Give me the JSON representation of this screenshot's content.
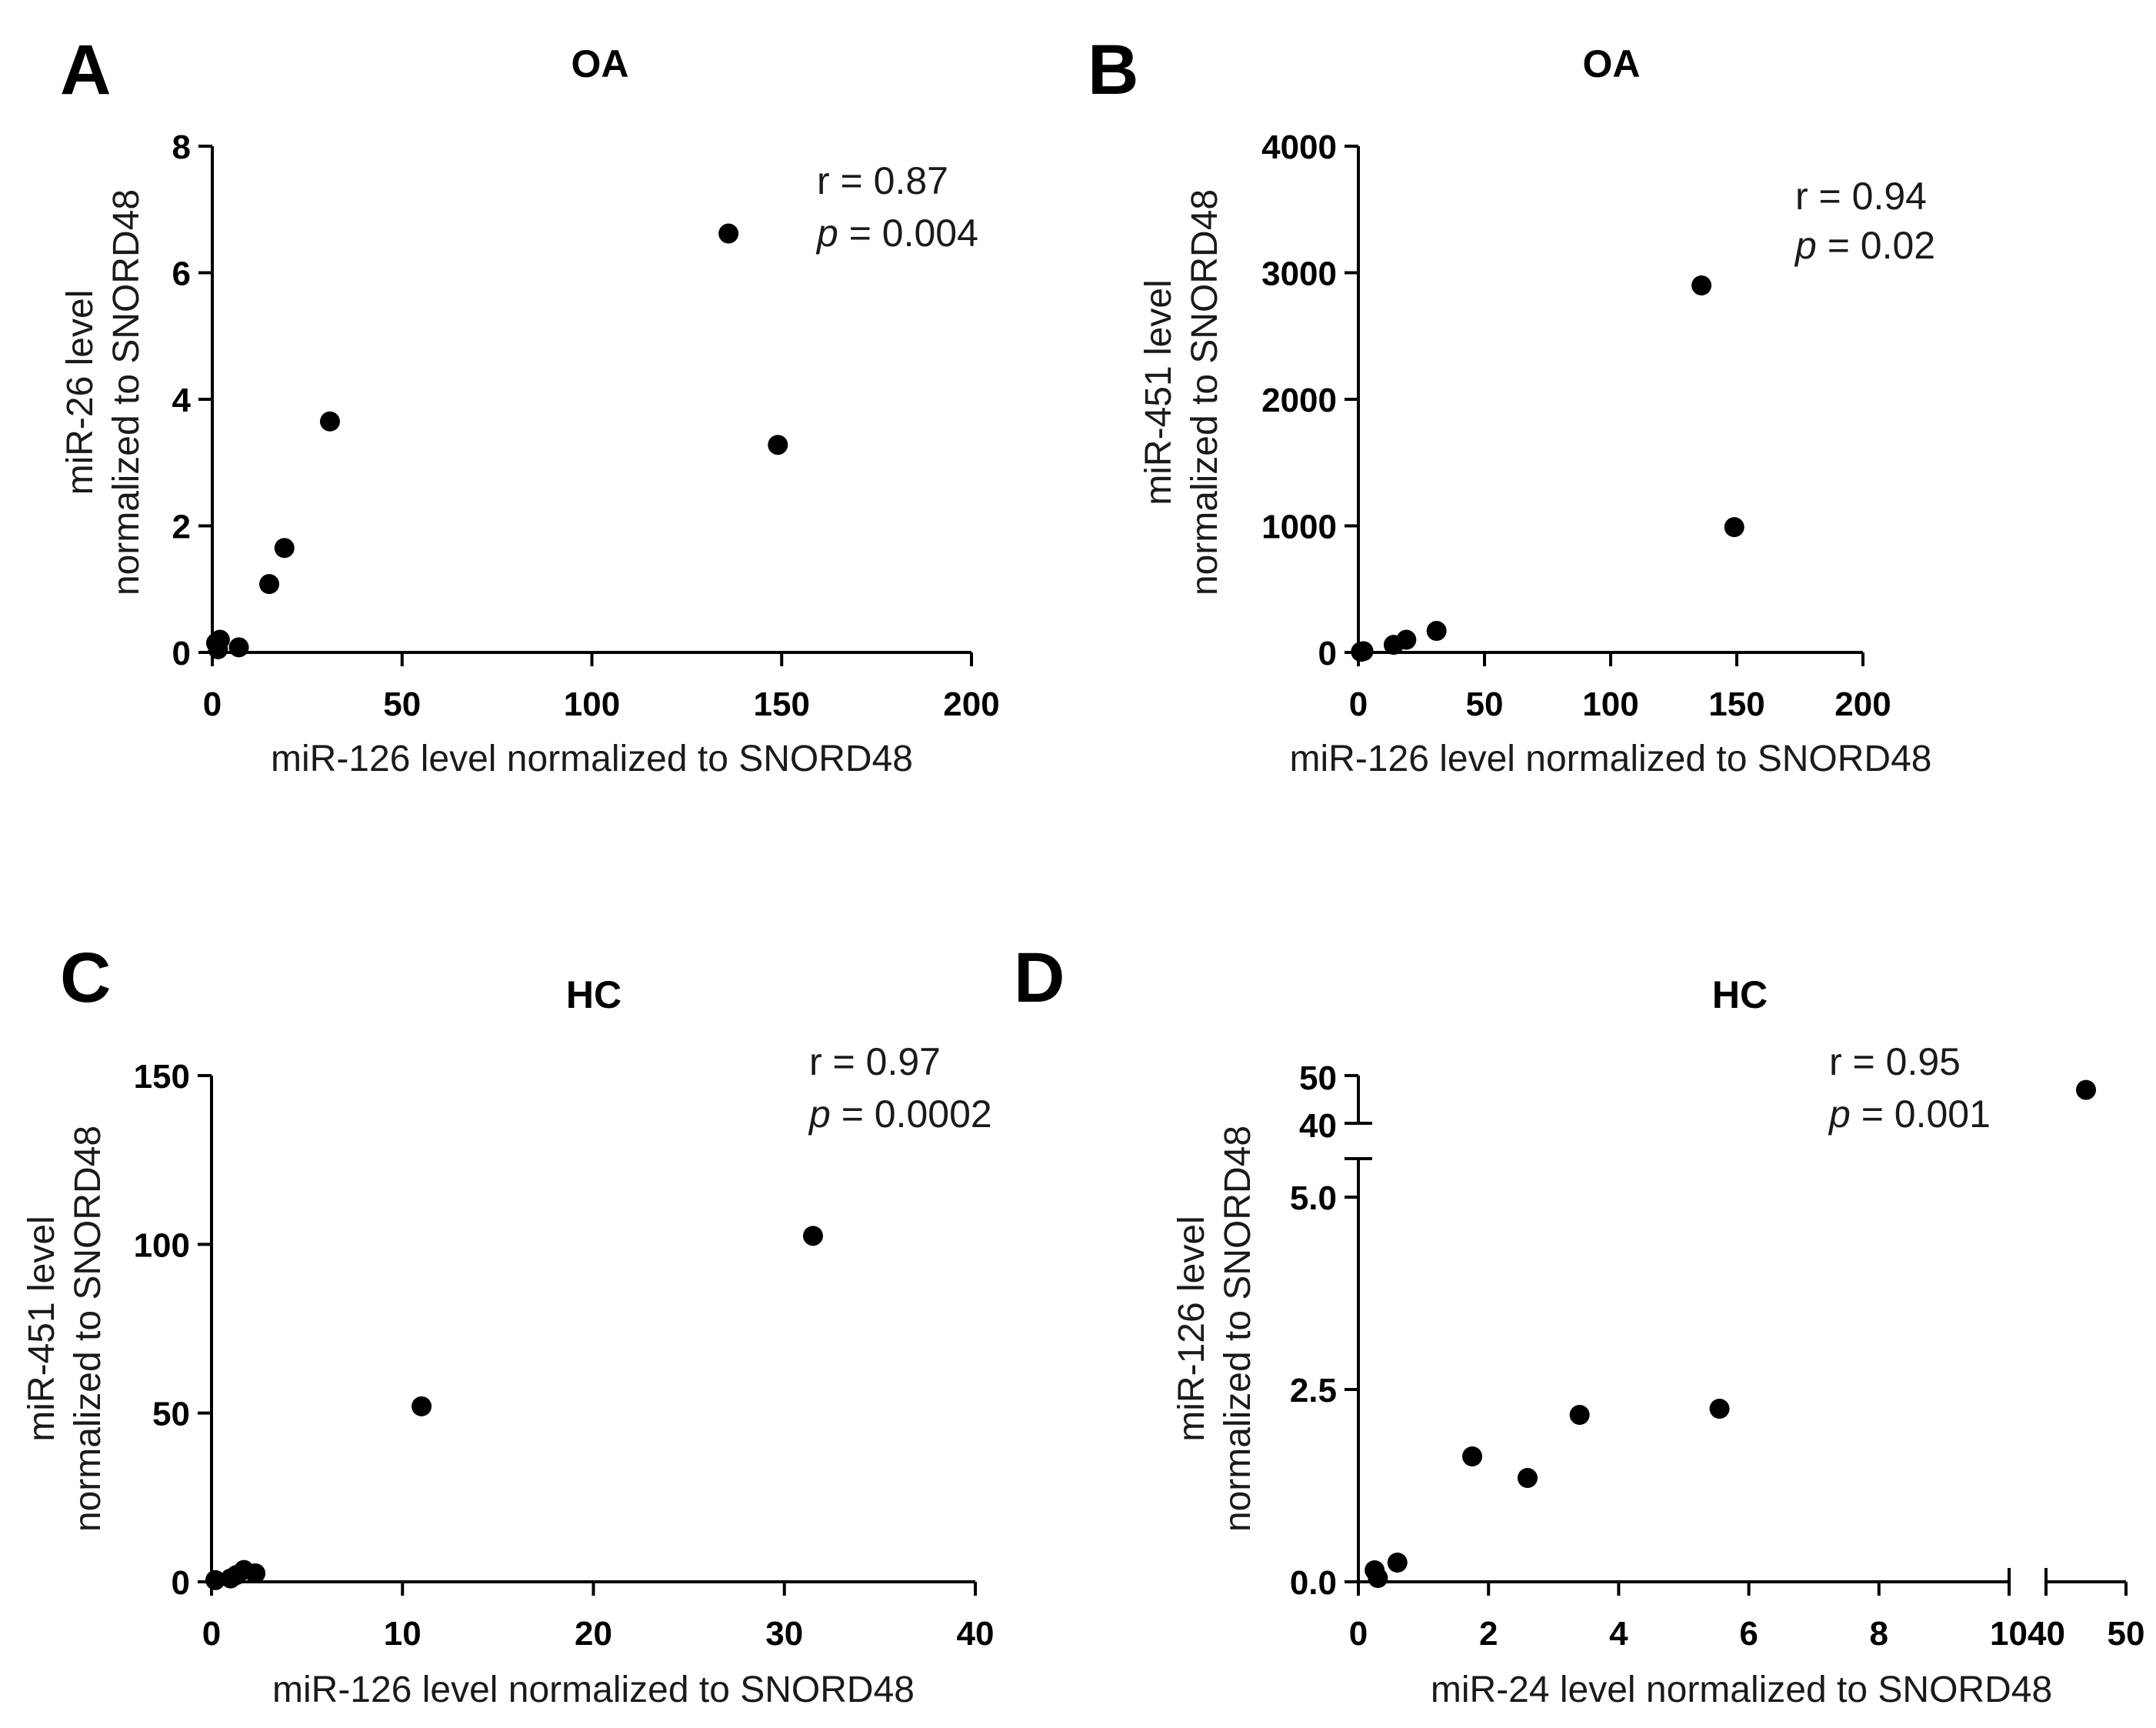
{
  "chart_data": [
    {
      "type": "scatter",
      "panel": "A",
      "title": "OA",
      "xlabel": "miR-126 level normalized to SNORD48",
      "ylabel_line1": "miR-26 level",
      "ylabel_line2": "normalized to SNORD48",
      "xlim": [
        0,
        200
      ],
      "ylim": [
        0,
        8
      ],
      "xticks": [
        0,
        50,
        100,
        150,
        200
      ],
      "yticks": [
        0,
        2,
        4,
        6,
        8
      ],
      "r": "r = 0.87",
      "p_symbol": "p",
      "p_value": " = 0.004",
      "points": [
        [
          1,
          0.15
        ],
        [
          2,
          0.2
        ],
        [
          1.5,
          0.05
        ],
        [
          7,
          0.08
        ],
        [
          15,
          1.08
        ],
        [
          19,
          1.65
        ],
        [
          31,
          3.65
        ],
        [
          136,
          6.62
        ],
        [
          149,
          3.28
        ]
      ]
    },
    {
      "type": "scatter",
      "panel": "B",
      "title": "OA",
      "xlabel": "miR-126 level normalized to SNORD48",
      "ylabel_line1": "miR-451 level",
      "ylabel_line2": "normalized to SNORD48",
      "xlim": [
        0,
        200
      ],
      "ylim": [
        0,
        4000
      ],
      "xticks": [
        0,
        50,
        100,
        150,
        200
      ],
      "yticks": [
        0,
        1000,
        2000,
        3000,
        4000
      ],
      "r": "r = 0.94",
      "p_symbol": "p",
      "p_value": " = 0.02",
      "points": [
        [
          1,
          5
        ],
        [
          2,
          10
        ],
        [
          14,
          60
        ],
        [
          19,
          100
        ],
        [
          31,
          170
        ],
        [
          136,
          2900
        ],
        [
          149,
          990
        ]
      ]
    },
    {
      "type": "scatter",
      "panel": "C",
      "title": "HC",
      "xlabel": "miR-126 level normalized to SNORD48",
      "ylabel_line1": "miR-451 level",
      "ylabel_line2": "normalized to SNORD48",
      "xlim": [
        0,
        40
      ],
      "ylim": [
        0,
        150
      ],
      "xticks": [
        0,
        10,
        20,
        30,
        40
      ],
      "yticks": [
        0,
        50,
        100,
        150
      ],
      "r": "r = 0.97",
      "p_symbol": "p",
      "p_value": " = 0.0002",
      "points": [
        [
          0.2,
          0.5
        ],
        [
          1,
          1
        ],
        [
          1.3,
          2
        ],
        [
          1.7,
          3.5
        ],
        [
          2.3,
          2.5
        ],
        [
          11,
          52
        ],
        [
          31.5,
          102.5
        ]
      ]
    },
    {
      "type": "scatter",
      "panel": "D",
      "title": "HC",
      "xlabel": "miR-24 level normalized to SNORD48",
      "ylabel_line1": "miR-126 level",
      "ylabel_line2": "normalized to SNORD48",
      "x_segments": [
        [
          0,
          10
        ],
        [
          40,
          50
        ]
      ],
      "y_segments": [
        [
          0,
          5.5
        ],
        [
          40,
          50
        ]
      ],
      "xticks_lower": [
        0,
        2,
        4,
        6,
        8
      ],
      "xtick_break_label": "1040",
      "xticks_upper": [
        50
      ],
      "yticks_lower": [
        "0.0",
        "2.5",
        "5.0"
      ],
      "yticks_upper": [
        40,
        50
      ],
      "r": "r = 0.95",
      "p_symbol": "p",
      "p_value": " = 0.001",
      "points": [
        [
          0.25,
          0.15
        ],
        [
          0.3,
          0.05
        ],
        [
          0.6,
          0.25
        ],
        [
          1.75,
          1.63
        ],
        [
          2.6,
          1.35
        ],
        [
          3.4,
          2.17
        ],
        [
          5.55,
          2.25
        ],
        [
          45,
          47
        ]
      ]
    }
  ]
}
